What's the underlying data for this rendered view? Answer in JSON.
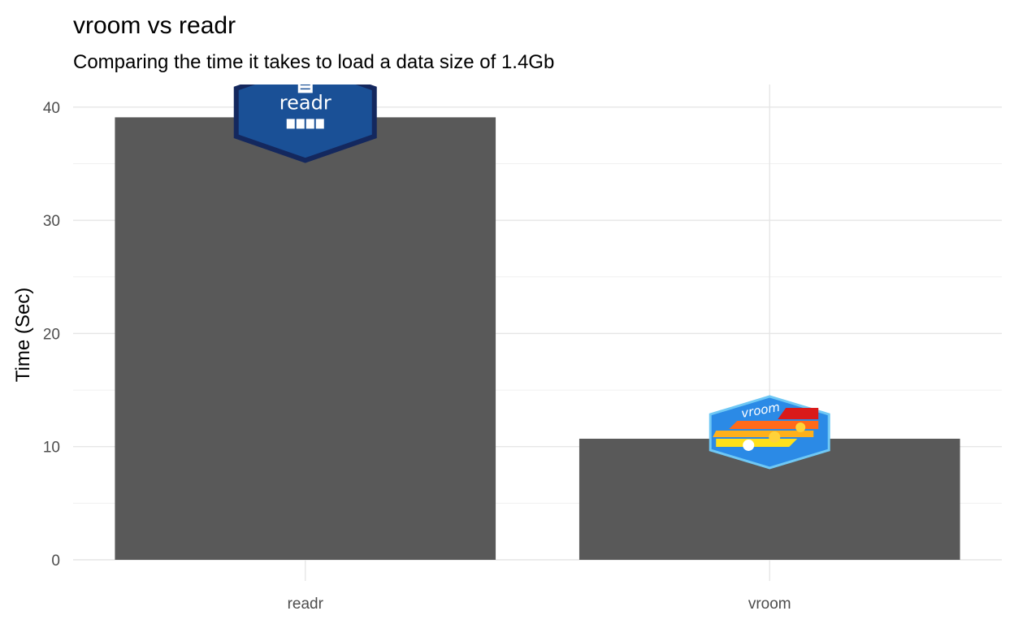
{
  "chart_data": {
    "type": "bar",
    "title": "vroom vs readr",
    "subtitle": "Comparing the time it takes to load a data size of 1.4Gb",
    "xlabel": "",
    "ylabel": "Time (Sec)",
    "categories": [
      "readr",
      "vroom"
    ],
    "values": [
      39.1,
      10.7
    ],
    "ylim": [
      0,
      42
    ],
    "yticks": [
      0,
      10,
      20,
      30,
      40
    ],
    "grid": true,
    "legend": "none",
    "bar_color": "#595959",
    "logos": [
      {
        "category": "readr",
        "label": "readr",
        "icon": "readr-hex-logo",
        "fill": "#1a5096",
        "border": "#14285e"
      },
      {
        "category": "vroom",
        "label": "vroom",
        "icon": "vroom-hex-logo",
        "fill": "#2b8ae6",
        "border": "#6fc8f5"
      }
    ]
  }
}
